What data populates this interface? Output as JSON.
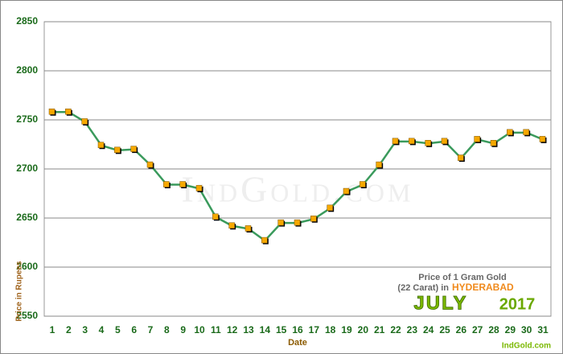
{
  "chart_data": {
    "type": "line",
    "watermark": "IndGold.com",
    "x_label": "Date",
    "y_label": "Price in Rupees",
    "legend_lines": [
      "Price of 1 Gram Gold",
      "(22 Carat) in"
    ],
    "city": "HYDERABAD",
    "month": "JULY",
    "year": "2017",
    "source": "IndGold.com",
    "categories": [
      "1",
      "2",
      "3",
      "4",
      "5",
      "6",
      "7",
      "8",
      "9",
      "10",
      "11",
      "12",
      "13",
      "14",
      "15",
      "16",
      "17",
      "18",
      "19",
      "20",
      "21",
      "22",
      "23",
      "24",
      "25",
      "26",
      "27",
      "28",
      "29",
      "30",
      "31"
    ],
    "series": [
      {
        "name": "Price",
        "color": "#3a9a5c",
        "marker_color": "#f5a800",
        "values": [
          2758,
          2758,
          2748,
          2724,
          2719,
          2720,
          2704,
          2684,
          2684,
          2680,
          2651,
          2642,
          2639,
          2627,
          2645,
          2645,
          2649,
          2660,
          2677,
          2684,
          2704,
          2728,
          2728,
          2726,
          2728,
          2711,
          2730,
          2726,
          2737,
          2737,
          2730
        ]
      }
    ],
    "ylim": [
      2550,
      2850
    ],
    "yticks": [
      2550,
      2600,
      2650,
      2700,
      2750,
      2800,
      2850
    ],
    "grid": true
  }
}
